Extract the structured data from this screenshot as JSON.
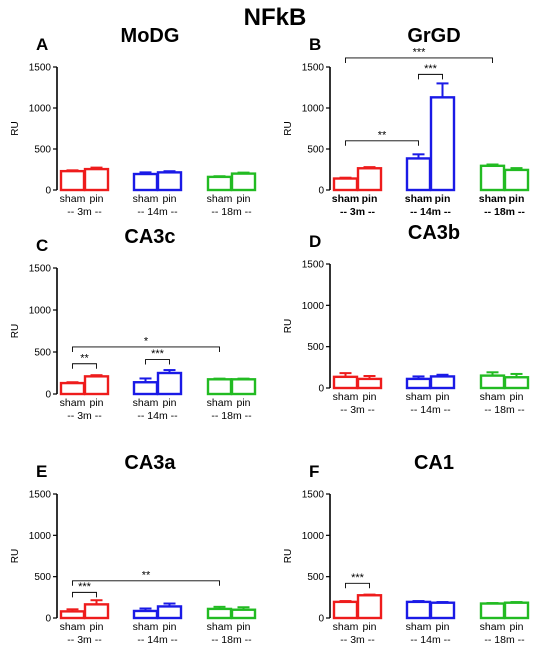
{
  "figure": {
    "title": "NFkB",
    "title_color": "#ee1c1c"
  },
  "colors": {
    "3m": "#ee1c1c",
    "14m": "#1a1ae6",
    "18m": "#22bb22"
  },
  "chart_data": [
    {
      "letter": "A",
      "title": "MoDG",
      "type": "bar",
      "ylabel": "RU",
      "ylim": [
        0,
        1500
      ],
      "yticks": [
        "0",
        "500",
        "1000",
        "1500"
      ],
      "ytick_values": [
        0,
        500,
        1000,
        1500
      ],
      "categories": [
        "sham",
        "pin",
        "sham",
        "pin",
        "sham",
        "pin"
      ],
      "groups": [
        "-- 3m --",
        "-- 14m --",
        "-- 18m --"
      ],
      "group_keys": [
        "3m",
        "3m",
        "14m",
        "14m",
        "18m",
        "18m"
      ],
      "values": [
        230,
        255,
        195,
        215,
        160,
        200
      ],
      "errors": [
        10,
        18,
        20,
        14,
        8,
        12
      ],
      "bold_labels": false,
      "annotations": []
    },
    {
      "letter": "B",
      "title": "GrGD",
      "type": "bar",
      "ylabel": "RU",
      "ylim": [
        0,
        1500
      ],
      "yticks": [
        "0",
        "500",
        "1000",
        "1500"
      ],
      "ytick_values": [
        0,
        500,
        1000,
        1500
      ],
      "categories": [
        "sham",
        "pin",
        "sham",
        "pin",
        "sham",
        "pin"
      ],
      "groups": [
        "-- 3m --",
        "-- 14m --",
        "-- 18m --"
      ],
      "group_keys": [
        "3m",
        "3m",
        "14m",
        "14m",
        "18m",
        "18m"
      ],
      "values": [
        140,
        265,
        385,
        1130,
        295,
        245
      ],
      "errors": [
        10,
        14,
        50,
        170,
        16,
        22
      ],
      "bold_labels": true,
      "annotations": [
        {
          "from": 0,
          "to": 2,
          "y": 600,
          "text": "**"
        },
        {
          "from": 2,
          "to": 3,
          "y": 1410,
          "text": "***"
        },
        {
          "from": 0,
          "to": 4,
          "y": 1610,
          "text": "***"
        }
      ]
    },
    {
      "letter": "C",
      "title": "CA3c",
      "type": "bar",
      "ylabel": "RU",
      "ylim": [
        0,
        1500
      ],
      "yticks": [
        "0",
        "500",
        "1000",
        "1500"
      ],
      "ytick_values": [
        0,
        500,
        1000,
        1500
      ],
      "categories": [
        "sham",
        "pin",
        "sham",
        "pin",
        "sham",
        "pin"
      ],
      "groups": [
        "-- 3m --",
        "-- 14m --",
        "-- 18m --"
      ],
      "group_keys": [
        "3m",
        "3m",
        "14m",
        "14m",
        "18m",
        "18m"
      ],
      "values": [
        130,
        210,
        140,
        250,
        175,
        175
      ],
      "errors": [
        10,
        14,
        45,
        35,
        8,
        8
      ],
      "bold_labels": false,
      "annotations": [
        {
          "from": 0,
          "to": 1,
          "y": 360,
          "text": "**"
        },
        {
          "from": 2,
          "to": 3,
          "y": 410,
          "text": "***"
        },
        {
          "from": 0,
          "to": 4,
          "y": 560,
          "text": "*"
        }
      ]
    },
    {
      "letter": "D",
      "title": "CA3b",
      "type": "bar",
      "ylabel": "RU",
      "ylim": [
        0,
        1500
      ],
      "yticks": [
        "0",
        "500",
        "1000",
        "1500"
      ],
      "ytick_values": [
        0,
        500,
        1000,
        1500
      ],
      "categories": [
        "sham",
        "pin",
        "sham",
        "pin",
        "sham",
        "pin"
      ],
      "groups": [
        "-- 3m --",
        "-- 14m --",
        "-- 18m --"
      ],
      "group_keys": [
        "3m",
        "3m",
        "14m",
        "14m",
        "18m",
        "18m"
      ],
      "values": [
        135,
        110,
        110,
        140,
        150,
        130
      ],
      "errors": [
        45,
        35,
        30,
        20,
        40,
        40
      ],
      "bold_labels": false,
      "annotations": []
    },
    {
      "letter": "E",
      "title": "CA3a",
      "type": "bar",
      "ylabel": "RU",
      "ylim": [
        0,
        1500
      ],
      "yticks": [
        "0",
        "500",
        "1000",
        "1500"
      ],
      "ytick_values": [
        0,
        500,
        1000,
        1500
      ],
      "categories": [
        "sham",
        "pin",
        "sham",
        "pin",
        "sham",
        "pin"
      ],
      "groups": [
        "-- 3m --",
        "-- 14m --",
        "-- 18m --"
      ],
      "group_keys": [
        "3m",
        "3m",
        "14m",
        "14m",
        "18m",
        "18m"
      ],
      "values": [
        80,
        165,
        85,
        140,
        110,
        100
      ],
      "errors": [
        25,
        50,
        30,
        35,
        25,
        30
      ],
      "bold_labels": false,
      "annotations": [
        {
          "from": 0,
          "to": 1,
          "y": 310,
          "text": "***"
        },
        {
          "from": 0,
          "to": 4,
          "y": 450,
          "text": "**"
        }
      ]
    },
    {
      "letter": "F",
      "title": "CA1",
      "type": "bar",
      "ylabel": "RU",
      "ylim": [
        0,
        1500
      ],
      "yticks": [
        "0",
        "500",
        "1000",
        "1500"
      ],
      "ytick_values": [
        0,
        500,
        1000,
        1500
      ],
      "categories": [
        "sham",
        "pin",
        "sham",
        "pin",
        "sham",
        "pin"
      ],
      "groups": [
        "-- 3m --",
        "-- 14m --",
        "-- 18m --"
      ],
      "group_keys": [
        "3m",
        "3m",
        "14m",
        "14m",
        "18m",
        "18m"
      ],
      "values": [
        195,
        275,
        195,
        185,
        175,
        185
      ],
      "errors": [
        10,
        8,
        10,
        8,
        6,
        8
      ],
      "bold_labels": false,
      "annotations": [
        {
          "from": 0,
          "to": 1,
          "y": 420,
          "text": "***"
        }
      ]
    }
  ]
}
